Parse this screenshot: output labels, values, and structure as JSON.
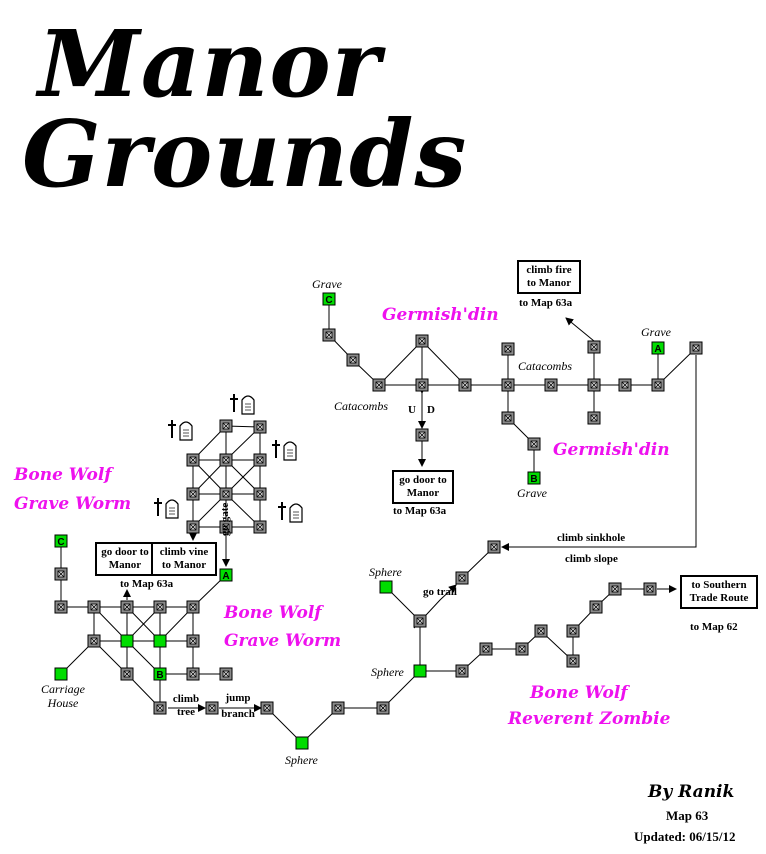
{
  "title": {
    "line1": "Manor",
    "line2": "Grounds"
  },
  "mobs": {
    "top_center": "Germish'din",
    "right": "Germish'din",
    "left_1": "Bone Wolf",
    "left_2": "Grave Worm",
    "mid_1": "Bone Wolf",
    "mid_2": "Grave Worm",
    "bottom_1": "Bone Wolf",
    "bottom_2": "Reverent Zombie"
  },
  "labels": {
    "grave": "Grave",
    "catacombs": "Catacombs",
    "sphere": "Sphere",
    "carriage_house": "Carriage House",
    "u": "U",
    "d": "D",
    "go_gate": "go gate",
    "go_trail": "go trail",
    "climb_tree": "climb tree",
    "jump_branch": "jump branch",
    "climb_sinkhole": "climb  sinkhole",
    "climb_slope": "climb  slope",
    "to_map_63a": "to Map 63a",
    "to_map_62": "to Map 62"
  },
  "exits": {
    "climb_fire": "climb fire to Manor",
    "go_door_center": "go door to Manor",
    "go_door_left": "go door to Manor",
    "climb_vine": "climb vine to Manor",
    "southern_route": "to Southern Trade Route"
  },
  "markers": {
    "a": "A",
    "b": "B",
    "c": "C"
  },
  "icons": [
    "tombstone-icon"
  ],
  "colors": {
    "mob": "#ee11ee",
    "special_room": "#00dd00",
    "room": "#888888"
  },
  "credits": {
    "by": "By Ranik",
    "map": "Map 63",
    "updated": "Updated: 06/15/12"
  }
}
